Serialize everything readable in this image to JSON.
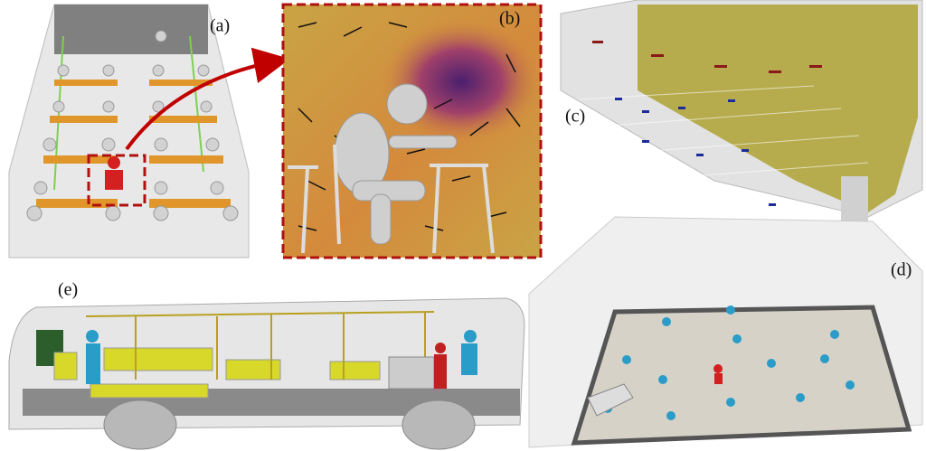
{
  "panels": {
    "a": "(a)",
    "b": "(b)",
    "c": "(c)",
    "d": "(d)",
    "e": "(e)"
  }
}
